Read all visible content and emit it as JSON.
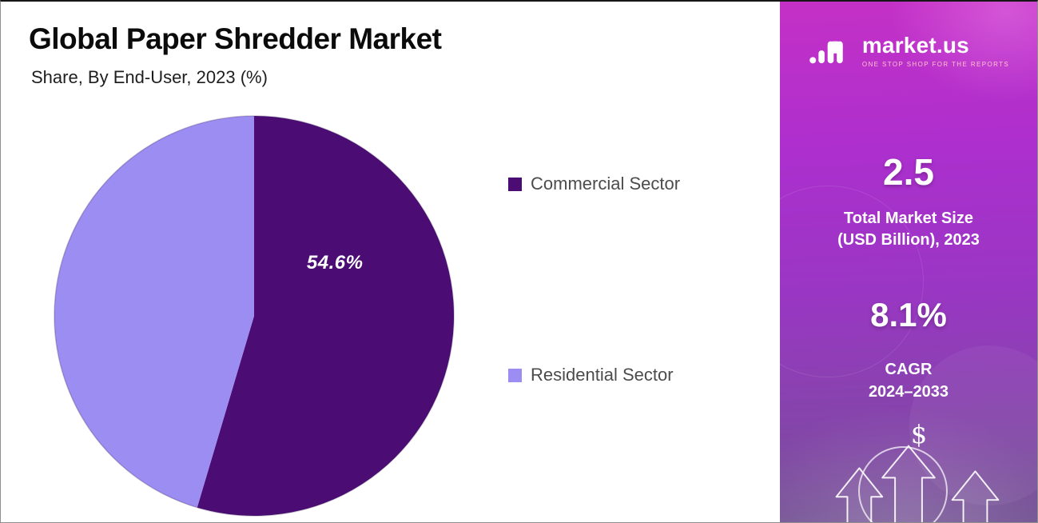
{
  "chart_data": {
    "type": "pie",
    "title": "Global Paper Shredder Market",
    "subtitle": "Share, By End-User, 2023 (%)",
    "unit": "%",
    "start_angle": "12-o-clock",
    "direction": "clockwise",
    "legend_position": "right",
    "slices": [
      {
        "label": "Commercial Sector",
        "value": 54.6,
        "data_label": "54.6%",
        "color": "#4b0d73"
      },
      {
        "label": "Residential Sector",
        "value": 45.4,
        "data_label": "",
        "color": "#9c8df2"
      }
    ]
  },
  "sidebar": {
    "logo": {
      "name": "market.us",
      "tagline": "ONE STOP SHOP FOR THE REPORTS"
    },
    "market_size": {
      "value": "2.5",
      "label_line1": "Total Market Size",
      "label_line2": "(USD Billion), 2023"
    },
    "cagr": {
      "value": "8.1%",
      "label_line1": "CAGR",
      "label_line2": "2024–2033"
    },
    "dollar_sign": "$"
  }
}
